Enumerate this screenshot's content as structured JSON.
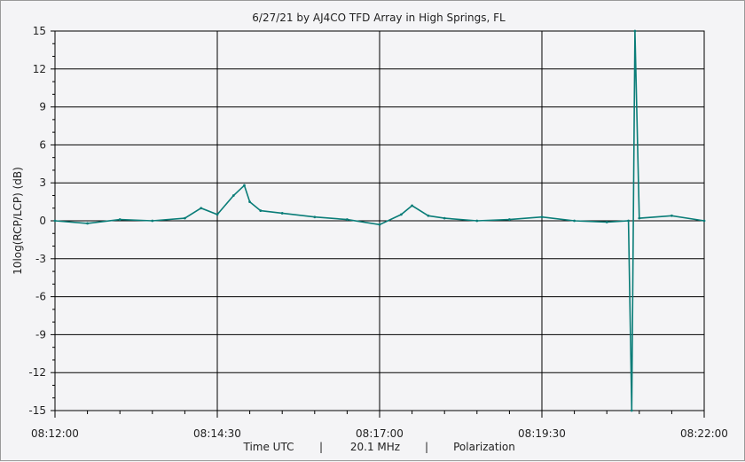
{
  "chart_data": {
    "type": "line",
    "title": "6/27/21  by  AJ4CO TFD Array  in  High Springs, FL",
    "ylabel": "10log(RCP/LCP) (dB)",
    "xlabel_parts": [
      "Time UTC",
      "|",
      "20.1 MHz",
      "|",
      "Polarization"
    ],
    "ylim": [
      -15,
      15
    ],
    "yticks": [
      15,
      12,
      9,
      6,
      3,
      0,
      -3,
      -6,
      -9,
      -12,
      -15
    ],
    "ytick_labels": [
      "15",
      "12",
      "9",
      "6",
      "3",
      "0",
      "-3",
      "-6",
      "-9",
      "-12",
      "-15"
    ],
    "xlim_seconds_after_0812": [
      0,
      600
    ],
    "xticks_seconds_after_0812": [
      0,
      150,
      300,
      450,
      600
    ],
    "xtick_labels": [
      "08:12:00",
      "08:14:30",
      "08:17:00",
      "08:19:30",
      "08:22:00"
    ],
    "grid": true,
    "series_color": "#0a7d78",
    "series": [
      {
        "name": "Polarization",
        "time_utc": [
          "08:12:00",
          "08:12:30",
          "08:13:00",
          "08:13:30",
          "08:14:00",
          "08:14:15",
          "08:14:30",
          "08:14:45",
          "08:14:55",
          "08:15:00",
          "08:15:10",
          "08:15:30",
          "08:16:00",
          "08:16:30",
          "08:17:00",
          "08:17:20",
          "08:17:30",
          "08:17:45",
          "08:18:00",
          "08:18:30",
          "08:19:00",
          "08:19:30",
          "08:20:00",
          "08:20:30",
          "08:20:50",
          "08:20:53",
          "08:20:56",
          "08:21:00",
          "08:21:30",
          "08:22:00"
        ],
        "values_db": [
          0.0,
          -0.2,
          0.1,
          0.0,
          0.2,
          1.0,
          0.5,
          2.0,
          2.8,
          1.5,
          0.8,
          0.6,
          0.3,
          0.1,
          -0.3,
          0.5,
          1.2,
          0.4,
          0.2,
          0.0,
          0.1,
          0.3,
          0.0,
          -0.1,
          0.0,
          -15.0,
          15.0,
          0.2,
          0.4,
          0.0
        ]
      }
    ]
  }
}
